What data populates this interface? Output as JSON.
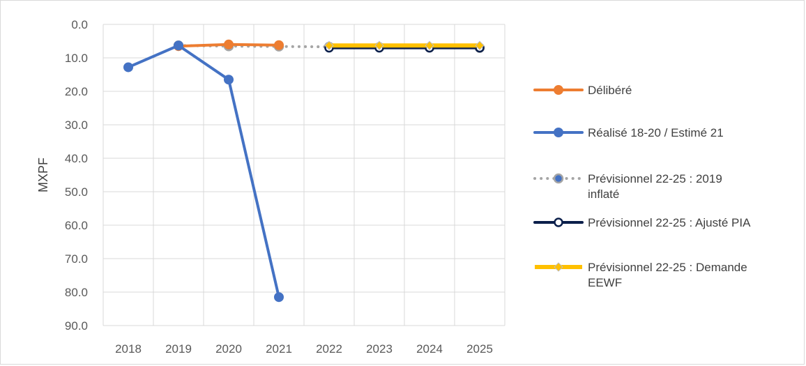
{
  "chart_data": {
    "type": "line",
    "title": "",
    "xlabel": "",
    "ylabel": "MXPF",
    "y_reversed": true,
    "ylim": [
      0,
      90
    ],
    "y_ticks": [
      "0.0",
      "10.0",
      "20.0",
      "30.0",
      "40.0",
      "50.0",
      "60.0",
      "70.0",
      "80.0",
      "90.0"
    ],
    "categories": [
      "2018",
      "2019",
      "2020",
      "2021",
      "2022",
      "2023",
      "2024",
      "2025"
    ],
    "grid": true,
    "legend_position": "right",
    "series": [
      {
        "name": "Délibéré",
        "color": "#ed7d31",
        "style": "solid",
        "marker": "circle",
        "values": [
          null,
          6.5,
          6.0,
          6.2,
          null,
          null,
          null,
          null
        ]
      },
      {
        "name": "Réalisé 18-20 / Estimé 21",
        "color": "#4472c4",
        "style": "solid",
        "marker": "circle",
        "values": [
          12.8,
          6.3,
          16.5,
          81.5,
          null,
          null,
          null,
          null
        ]
      },
      {
        "name": "Prévisionnel 22-25 : 2019 inflaté",
        "color": "#a5a5a5",
        "style": "dotted",
        "marker": "circle",
        "values": [
          null,
          6.3,
          6.5,
          6.6,
          6.7,
          6.8,
          6.9,
          7.0
        ]
      },
      {
        "name": "Prévisionnel 22-25 : Ajusté PIA",
        "color": "#0b1f4b",
        "style": "solid",
        "marker": "circle-open",
        "values": [
          null,
          null,
          null,
          null,
          7.0,
          7.0,
          7.0,
          7.0
        ]
      },
      {
        "name": "Prévisionnel 22-25 : Demande EEWF",
        "color": "#ffc000",
        "style": "solid",
        "marker": "diamond",
        "values": [
          null,
          null,
          null,
          null,
          6.3,
          6.3,
          6.3,
          6.3
        ]
      }
    ],
    "legend_lines": [
      [
        "Délibéré"
      ],
      [
        "Réalisé 18-20 / Estimé 21"
      ],
      [
        "Prévisionnel 22-25 : 2019",
        "inflaté"
      ],
      [
        "Prévisionnel 22-25 : Ajusté PIA"
      ],
      [
        "Prévisionnel 22-25 : Demande",
        "EEWF"
      ]
    ]
  }
}
